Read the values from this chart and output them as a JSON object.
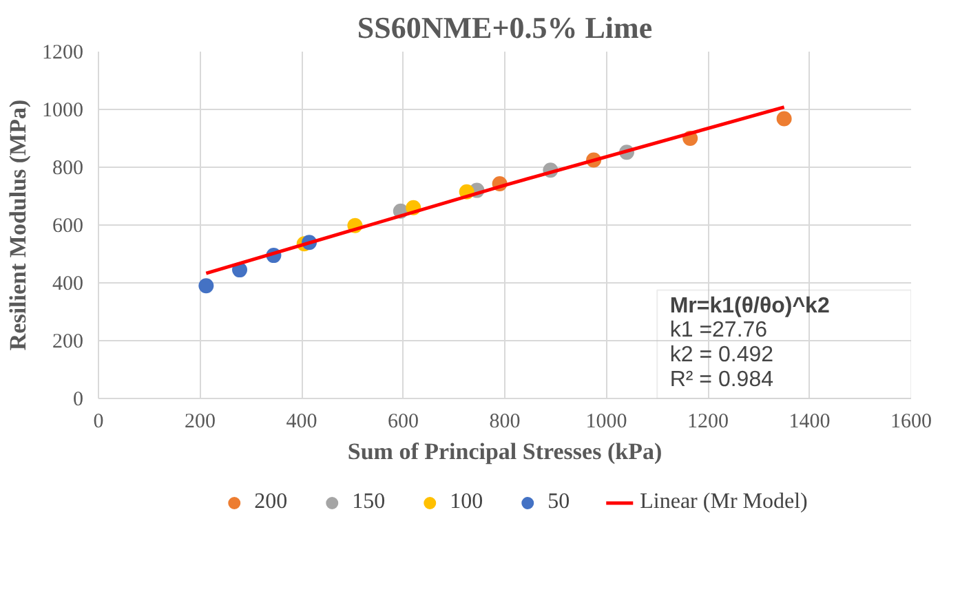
{
  "chart_data": {
    "type": "scatter",
    "title": "SS60NME+0.5% Lime",
    "xlabel": "Sum of Principal Stresses (kPa)",
    "ylabel": "Resilient Modulus (MPa)",
    "xlim": [
      0,
      1600
    ],
    "xticks": [
      0,
      200,
      400,
      600,
      800,
      1000,
      1200,
      1400,
      1600
    ],
    "ylim": [
      0,
      1200
    ],
    "yticks": [
      0,
      200,
      400,
      600,
      800,
      1000,
      1200
    ],
    "grid": true,
    "legend": "bottom",
    "marker": "circle",
    "series": [
      {
        "name": "200",
        "color": "#ed7d31",
        "x": [
          790,
          975,
          1165,
          1350
        ],
        "values": [
          743,
          825,
          900,
          968
        ]
      },
      {
        "name": "150",
        "color": "#a5a5a5",
        "x": [
          595,
          745,
          890,
          1040
        ],
        "values": [
          648,
          720,
          790,
          852
        ]
      },
      {
        "name": "100",
        "color": "#ffc000",
        "x": [
          405,
          505,
          620,
          725
        ],
        "values": [
          535,
          598,
          660,
          715
        ]
      },
      {
        "name": "50",
        "color": "#4472c4",
        "x": [
          212,
          278,
          345,
          415
        ],
        "values": [
          390,
          445,
          495,
          540
        ]
      },
      {
        "name": "Linear (Mr Model)",
        "type": "line",
        "color": "#ff0000",
        "marker": "none",
        "x": [
          212,
          800,
          1350
        ],
        "values": [
          433,
          738,
          1008
        ]
      }
    ],
    "annotations": [
      "Mr=k1(θ/θo)^k2",
      "k1 =27.76",
      "k2 = 0.492",
      "R² = 0.984"
    ]
  }
}
